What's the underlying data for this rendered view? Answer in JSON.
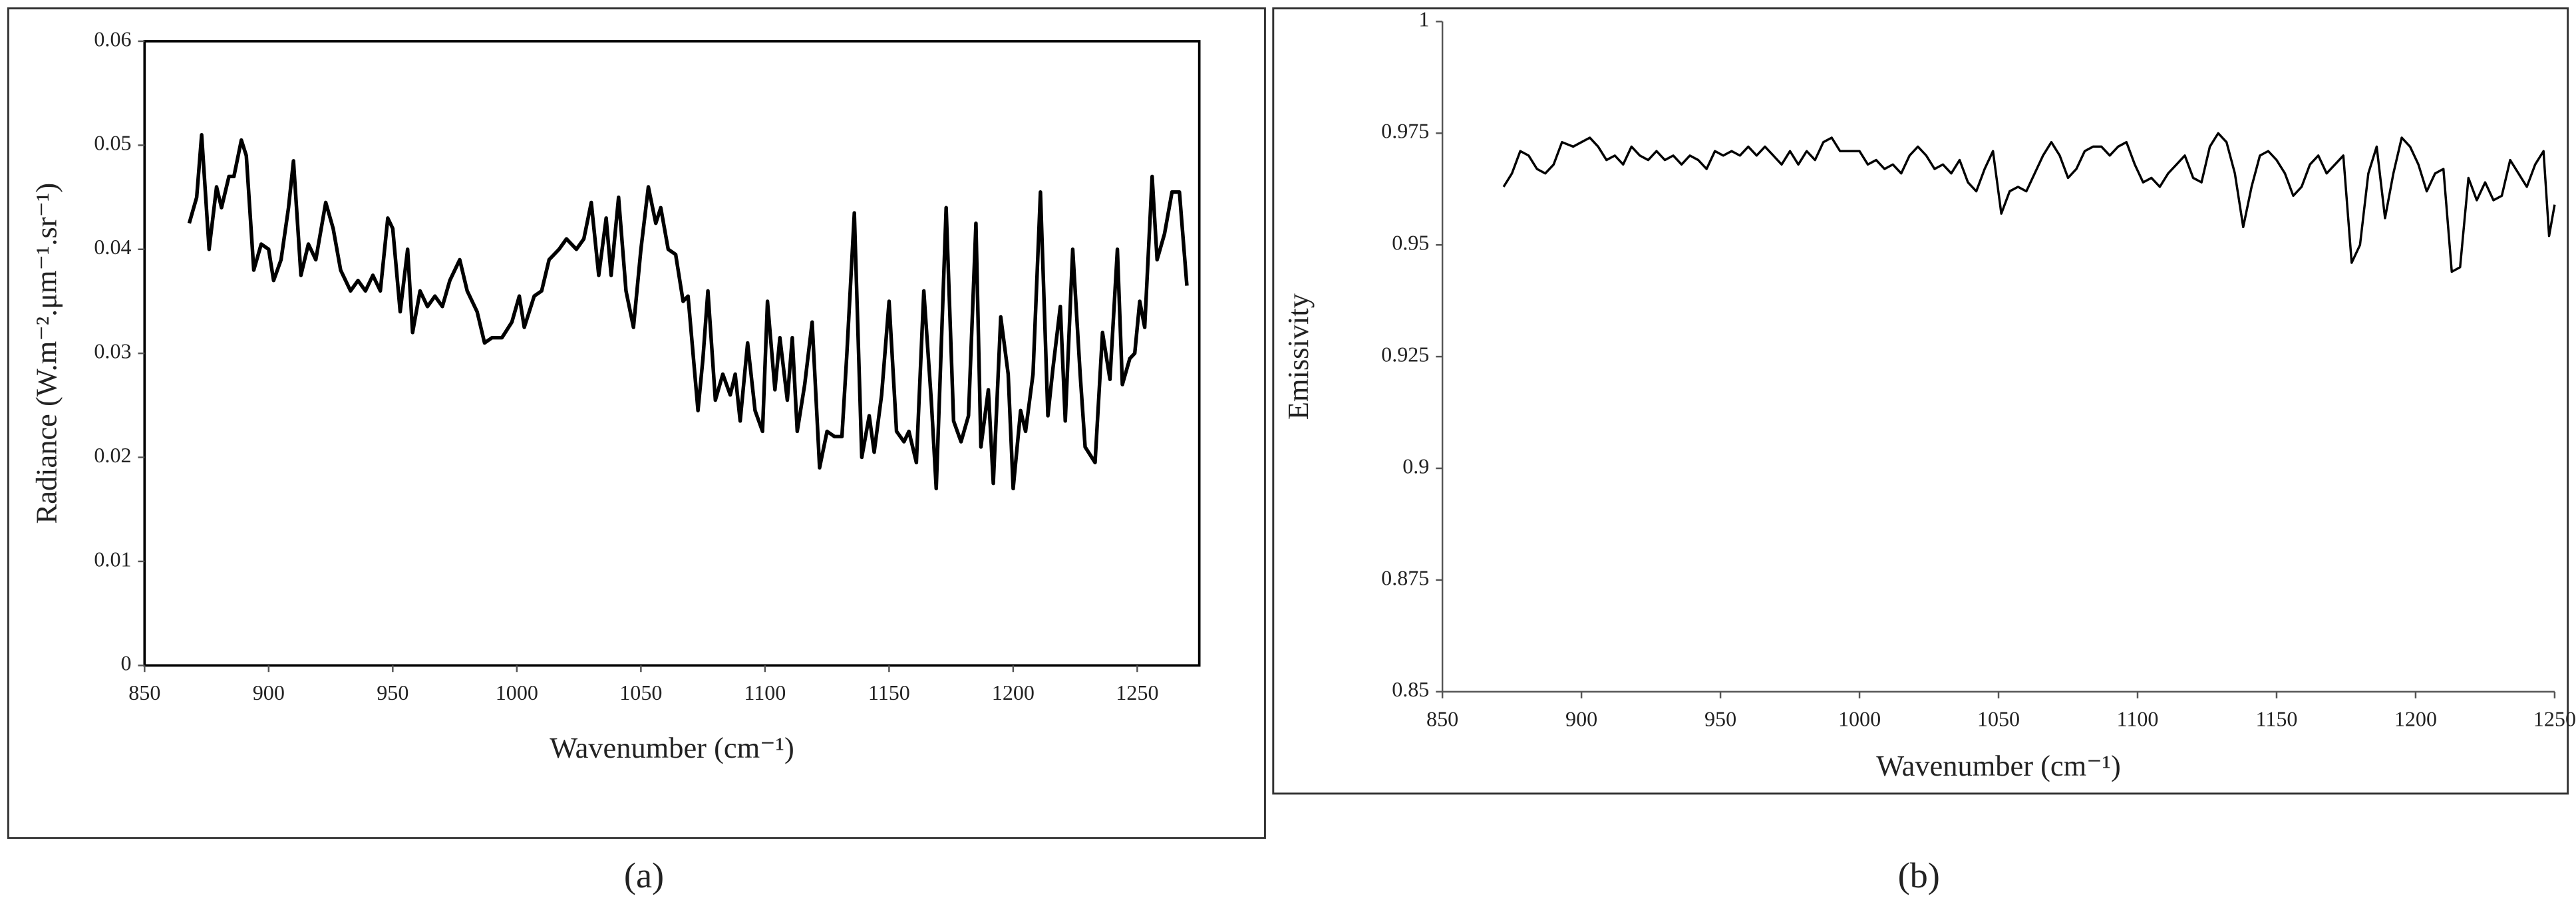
{
  "chart_data": [
    {
      "type": "line",
      "panel_label": "(a)",
      "xlabel": "Wavenumber (cm⁻¹)",
      "ylabel": "Radiance (W.m⁻².μm⁻¹.sr⁻¹)",
      "xlim": [
        850,
        1275
      ],
      "xticks": [
        850,
        900,
        950,
        1000,
        1050,
        1100,
        1150,
        1200,
        1250
      ],
      "ylim": [
        0,
        0.06
      ],
      "yticks": [
        0,
        0.01,
        0.02,
        0.03,
        0.04,
        0.05,
        0.06
      ],
      "color": "#000000",
      "frame": true,
      "x": [
        868,
        871,
        873,
        876,
        879,
        881,
        884,
        886,
        889,
        891,
        894,
        897,
        900,
        902,
        905,
        908,
        910,
        913,
        916,
        919,
        923,
        926,
        929,
        933,
        936,
        939,
        942,
        945,
        948,
        950,
        953,
        956,
        958,
        961,
        964,
        967,
        970,
        973,
        977,
        980,
        984,
        987,
        990,
        994,
        998,
        1001,
        1003,
        1007,
        1010,
        1013,
        1017,
        1020,
        1024,
        1027,
        1030,
        1033,
        1036,
        1038,
        1041,
        1044,
        1047,
        1050,
        1053,
        1056,
        1058,
        1061,
        1064,
        1067,
        1069,
        1073,
        1075,
        1077,
        1080,
        1083,
        1086,
        1088,
        1090,
        1093,
        1096,
        1099,
        1101,
        1104,
        1106,
        1109,
        1111,
        1113,
        1116,
        1119,
        1122,
        1125,
        1128,
        1131,
        1133,
        1136,
        1139,
        1142,
        1144,
        1147,
        1150,
        1153,
        1156,
        1158,
        1161,
        1164,
        1167,
        1169,
        1173,
        1176,
        1179,
        1182,
        1185,
        1187,
        1190,
        1192,
        1195,
        1198,
        1200,
        1203,
        1205,
        1208,
        1211,
        1214,
        1216,
        1219,
        1221,
        1224,
        1227,
        1229,
        1233,
        1236,
        1239,
        1242,
        1244,
        1247,
        1249,
        1251,
        1253,
        1256,
        1258,
        1261,
        1264,
        1267,
        1270
      ],
      "values": [
        0.0425,
        0.045,
        0.051,
        0.04,
        0.046,
        0.044,
        0.047,
        0.047,
        0.0505,
        0.049,
        0.038,
        0.0405,
        0.04,
        0.037,
        0.039,
        0.044,
        0.0485,
        0.0375,
        0.0405,
        0.039,
        0.0445,
        0.042,
        0.038,
        0.036,
        0.037,
        0.036,
        0.0375,
        0.036,
        0.043,
        0.042,
        0.034,
        0.04,
        0.032,
        0.036,
        0.0345,
        0.0355,
        0.0345,
        0.037,
        0.039,
        0.036,
        0.034,
        0.031,
        0.0315,
        0.0315,
        0.033,
        0.0355,
        0.0325,
        0.0355,
        0.036,
        0.039,
        0.04,
        0.041,
        0.04,
        0.041,
        0.0445,
        0.0375,
        0.043,
        0.0375,
        0.045,
        0.036,
        0.0325,
        0.04,
        0.046,
        0.0425,
        0.044,
        0.04,
        0.0395,
        0.035,
        0.0355,
        0.0245,
        0.0295,
        0.036,
        0.0255,
        0.028,
        0.026,
        0.028,
        0.0235,
        0.031,
        0.0245,
        0.0225,
        0.035,
        0.0265,
        0.0315,
        0.0255,
        0.0315,
        0.0225,
        0.027,
        0.033,
        0.019,
        0.0225,
        0.022,
        0.022,
        0.03,
        0.0435,
        0.02,
        0.024,
        0.0205,
        0.026,
        0.035,
        0.0225,
        0.0215,
        0.0225,
        0.0195,
        0.036,
        0.0255,
        0.017,
        0.044,
        0.0235,
        0.0215,
        0.024,
        0.0425,
        0.021,
        0.0265,
        0.0175,
        0.0335,
        0.028,
        0.017,
        0.0245,
        0.0225,
        0.028,
        0.0455,
        0.024,
        0.0285,
        0.0345,
        0.0235,
        0.04,
        0.028,
        0.021,
        0.0195,
        0.032,
        0.0275,
        0.04,
        0.027,
        0.0295,
        0.03,
        0.035,
        0.0325,
        0.047,
        0.039,
        0.0415,
        0.0455,
        0.0455,
        0.0365
      ]
    },
    {
      "type": "line",
      "panel_label": "(b)",
      "xlabel": "Wavenumber (cm⁻¹)",
      "ylabel": "Emissivity",
      "xlim": [
        850,
        1250
      ],
      "xticks": [
        850,
        900,
        950,
        1000,
        1050,
        1100,
        1150,
        1200,
        1250
      ],
      "ylim": [
        0.85,
        1
      ],
      "yticks": [
        0.85,
        0.875,
        0.9,
        0.925,
        0.95,
        0.975,
        1
      ],
      "color": "#000000",
      "frame": false,
      "x": [
        872,
        875,
        878,
        881,
        884,
        887,
        890,
        893,
        897,
        900,
        903,
        906,
        909,
        912,
        915,
        918,
        921,
        924,
        927,
        930,
        933,
        936,
        939,
        942,
        945,
        948,
        951,
        954,
        957,
        960,
        963,
        966,
        969,
        972,
        975,
        978,
        981,
        984,
        987,
        990,
        993,
        996,
        1000,
        1003,
        1006,
        1009,
        1012,
        1015,
        1018,
        1021,
        1024,
        1027,
        1030,
        1033,
        1036,
        1039,
        1042,
        1045,
        1048,
        1051,
        1054,
        1057,
        1060,
        1063,
        1066,
        1069,
        1072,
        1075,
        1078,
        1081,
        1084,
        1087,
        1090,
        1093,
        1096,
        1099,
        1102,
        1105,
        1108,
        1111,
        1114,
        1117,
        1120,
        1123,
        1126,
        1129,
        1132,
        1135,
        1138,
        1141,
        1144,
        1147,
        1150,
        1153,
        1156,
        1159,
        1162,
        1165,
        1168,
        1171,
        1174,
        1177,
        1180,
        1183,
        1186,
        1189,
        1192,
        1195,
        1198,
        1201,
        1204,
        1207,
        1210,
        1213,
        1216,
        1219,
        1222,
        1225,
        1228,
        1231,
        1234,
        1237,
        1240,
        1243,
        1246,
        1248,
        1250
      ],
      "values": [
        0.963,
        0.966,
        0.971,
        0.97,
        0.967,
        0.966,
        0.968,
        0.973,
        0.972,
        0.973,
        0.974,
        0.972,
        0.969,
        0.97,
        0.968,
        0.972,
        0.97,
        0.969,
        0.971,
        0.969,
        0.97,
        0.968,
        0.97,
        0.969,
        0.967,
        0.971,
        0.97,
        0.971,
        0.97,
        0.972,
        0.97,
        0.972,
        0.97,
        0.968,
        0.971,
        0.968,
        0.971,
        0.969,
        0.973,
        0.974,
        0.971,
        0.971,
        0.971,
        0.968,
        0.969,
        0.967,
        0.968,
        0.966,
        0.97,
        0.972,
        0.97,
        0.967,
        0.968,
        0.966,
        0.969,
        0.964,
        0.962,
        0.967,
        0.971,
        0.957,
        0.962,
        0.963,
        0.962,
        0.966,
        0.97,
        0.973,
        0.97,
        0.965,
        0.967,
        0.971,
        0.972,
        0.972,
        0.97,
        0.972,
        0.973,
        0.968,
        0.964,
        0.965,
        0.963,
        0.966,
        0.968,
        0.97,
        0.965,
        0.964,
        0.972,
        0.975,
        0.973,
        0.966,
        0.954,
        0.963,
        0.97,
        0.971,
        0.969,
        0.966,
        0.961,
        0.963,
        0.968,
        0.97,
        0.966,
        0.968,
        0.97,
        0.946,
        0.95,
        0.966,
        0.972,
        0.956,
        0.966,
        0.974,
        0.972,
        0.968,
        0.962,
        0.966,
        0.967,
        0.944,
        0.945,
        0.965,
        0.96,
        0.964,
        0.96,
        0.961,
        0.969,
        0.966,
        0.963,
        0.968,
        0.971,
        0.952,
        0.959
      ]
    }
  ]
}
